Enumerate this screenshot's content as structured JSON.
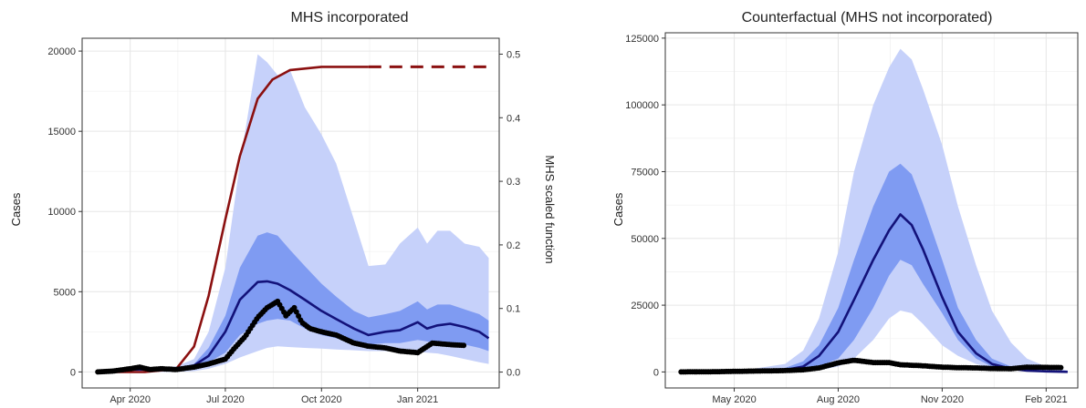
{
  "chart_data": [
    {
      "type": "area",
      "title": "MHS incorporated",
      "xlabel": "",
      "ylabel": "Cases",
      "y2label": "MHS scaled function",
      "xlim": [
        "2020-02-15",
        "2021-03-20"
      ],
      "ylim": [
        -1000,
        20800
      ],
      "y2lim": [
        -0.025,
        0.525
      ],
      "xticks": [
        {
          "date": "2020-04-01",
          "label": "Apr 2020"
        },
        {
          "date": "2020-07-01",
          "label": "Jul 2020"
        },
        {
          "date": "2020-10-01",
          "label": "Oct 2020"
        },
        {
          "date": "2021-01-01",
          "label": "Jan 2021"
        }
      ],
      "yticks": [
        0,
        5000,
        10000,
        15000,
        20000
      ],
      "y2ticks": [
        0.0,
        0.1,
        0.2,
        0.3,
        0.4,
        0.5
      ],
      "ytick_labels": [
        "0",
        "5000",
        "10000",
        "15000",
        "20000"
      ],
      "y2tick_labels": [
        "0.0",
        "0.1",
        "0.2",
        "0.3",
        "0.4",
        "0.5"
      ],
      "x": [
        "2020-03-01",
        "2020-03-15",
        "2020-04-01",
        "2020-04-15",
        "2020-05-01",
        "2020-05-15",
        "2020-06-01",
        "2020-06-15",
        "2020-07-01",
        "2020-07-15",
        "2020-08-01",
        "2020-08-10",
        "2020-08-20",
        "2020-09-01",
        "2020-09-15",
        "2020-10-01",
        "2020-10-15",
        "2020-11-01",
        "2020-11-15",
        "2020-12-01",
        "2020-12-15",
        "2021-01-01",
        "2021-01-10",
        "2021-01-20",
        "2021-02-01",
        "2021-02-15",
        "2021-03-01",
        "2021-03-10"
      ],
      "series": [
        {
          "kind": "band-outer",
          "lower": [
            0,
            0,
            0,
            0,
            0,
            0,
            50,
            200,
            500,
            900,
            1300,
            1500,
            1600,
            1550,
            1500,
            1450,
            1400,
            1350,
            1300,
            1300,
            1250,
            1250,
            1200,
            1150,
            1000,
            800,
            600,
            500
          ],
          "upper": [
            150,
            200,
            300,
            300,
            300,
            350,
            800,
            2500,
            6500,
            13000,
            19800,
            19300,
            18500,
            18800,
            16500,
            14800,
            13000,
            9500,
            6600,
            6700,
            8000,
            9000,
            8000,
            8800,
            8800,
            8000,
            7800,
            7100
          ]
        },
        {
          "kind": "band-inner",
          "lower": [
            0,
            0,
            50,
            100,
            100,
            150,
            300,
            600,
            1200,
            2300,
            3000,
            3200,
            3300,
            3200,
            2700,
            2300,
            2100,
            1800,
            1700,
            1800,
            1800,
            2000,
            1900,
            1800,
            1800,
            1700,
            1500,
            1300
          ],
          "upper": [
            50,
            100,
            200,
            200,
            200,
            250,
            500,
            1500,
            3500,
            6500,
            8500,
            8700,
            8500,
            7600,
            6600,
            5500,
            4700,
            3800,
            3400,
            3600,
            3800,
            4400,
            3900,
            4200,
            4200,
            3900,
            3600,
            3200
          ]
        },
        {
          "kind": "median",
          "values": [
            20,
            50,
            150,
            150,
            150,
            200,
            400,
            1000,
            2500,
            4500,
            5600,
            5650,
            5500,
            5100,
            4500,
            3800,
            3300,
            2700,
            2300,
            2500,
            2600,
            3100,
            2700,
            2900,
            3000,
            2800,
            2500,
            2100
          ]
        },
        {
          "kind": "observed",
          "x": [
            "2020-03-01",
            "2020-03-15",
            "2020-04-01",
            "2020-04-10",
            "2020-04-20",
            "2020-05-01",
            "2020-05-15",
            "2020-06-01",
            "2020-06-15",
            "2020-07-01",
            "2020-07-10",
            "2020-07-20",
            "2020-08-01",
            "2020-08-10",
            "2020-08-20",
            "2020-08-28",
            "2020-09-05",
            "2020-09-12",
            "2020-09-20",
            "2020-10-01",
            "2020-10-15",
            "2020-11-01",
            "2020-11-15",
            "2020-12-01",
            "2020-12-15",
            "2021-01-01",
            "2021-01-15",
            "2021-02-01",
            "2021-02-15"
          ],
          "values": [
            0,
            50,
            200,
            300,
            150,
            200,
            150,
            300,
            500,
            800,
            1500,
            2200,
            3400,
            4000,
            4400,
            3500,
            4000,
            3100,
            2700,
            2500,
            2300,
            1800,
            1600,
            1500,
            1300,
            1200,
            1800,
            1700,
            1650
          ]
        },
        {
          "kind": "mhs",
          "axis": "y2",
          "x": [
            "2020-03-01",
            "2020-04-15",
            "2020-05-15",
            "2020-06-01",
            "2020-06-15",
            "2020-07-01",
            "2020-07-15",
            "2020-08-01",
            "2020-08-15",
            "2020-09-01",
            "2020-10-01",
            "2020-11-15"
          ],
          "values": [
            0,
            0,
            0.005,
            0.04,
            0.12,
            0.24,
            0.34,
            0.43,
            0.46,
            0.475,
            0.48,
            0.48
          ],
          "projection_x": [
            "2020-11-15",
            "2021-03-10"
          ],
          "projection_values": [
            0.48,
            0.48
          ]
        }
      ]
    },
    {
      "type": "area",
      "title": "Counterfactual (MHS not incorporated)",
      "xlabel": "",
      "ylabel": "Cases",
      "xlim": [
        "2020-03-01",
        "2021-03-01"
      ],
      "ylim": [
        -6000,
        127000
      ],
      "xticks": [
        {
          "date": "2020-05-01",
          "label": "May 2020"
        },
        {
          "date": "2020-08-01",
          "label": "Aug 2020"
        },
        {
          "date": "2020-11-01",
          "label": "Nov 2020"
        },
        {
          "date": "2021-02-01",
          "label": "Feb 2021"
        }
      ],
      "yticks": [
        0,
        25000,
        50000,
        75000,
        100000,
        125000
      ],
      "ytick_labels": [
        "0",
        "25000",
        "50000",
        "75000",
        "100000",
        "125000"
      ],
      "x": [
        "2020-03-15",
        "2020-04-15",
        "2020-05-15",
        "2020-06-15",
        "2020-07-01",
        "2020-07-15",
        "2020-08-01",
        "2020-08-15",
        "2020-09-01",
        "2020-09-15",
        "2020-09-25",
        "2020-10-05",
        "2020-10-15",
        "2020-11-01",
        "2020-11-15",
        "2020-12-01",
        "2020-12-15",
        "2021-01-01",
        "2021-01-15",
        "2021-02-01",
        "2021-02-20"
      ],
      "series": [
        {
          "kind": "band-outer",
          "lower": [
            0,
            0,
            0,
            0,
            200,
            700,
            2000,
            5000,
            12000,
            20000,
            23000,
            22000,
            18000,
            10000,
            6000,
            3000,
            1500,
            700,
            300,
            100,
            0
          ],
          "upper": [
            300,
            500,
            1000,
            3000,
            8000,
            20000,
            45000,
            75000,
            100000,
            114000,
            121000,
            117000,
            106000,
            85000,
            62000,
            40000,
            23000,
            11000,
            5000,
            2000,
            500
          ]
        },
        {
          "kind": "band-inner",
          "lower": [
            0,
            0,
            0,
            200,
            700,
            2000,
            5000,
            12000,
            24000,
            36000,
            42000,
            40000,
            33000,
            22000,
            12000,
            5000,
            2000,
            800,
            300,
            100,
            0
          ],
          "upper": [
            100,
            200,
            500,
            1500,
            4000,
            10000,
            24000,
            42000,
            62000,
            75000,
            78000,
            74000,
            63000,
            42000,
            24000,
            12000,
            5000,
            2000,
            800,
            300,
            100
          ]
        },
        {
          "kind": "median",
          "values": [
            50,
            100,
            300,
            800,
            2000,
            6000,
            15000,
            27000,
            42000,
            53000,
            59000,
            55000,
            46000,
            28000,
            15000,
            7000,
            3000,
            1200,
            500,
            200,
            50
          ]
        },
        {
          "kind": "observed",
          "x": [
            "2020-03-15",
            "2020-04-15",
            "2020-05-15",
            "2020-06-15",
            "2020-07-01",
            "2020-07-15",
            "2020-08-01",
            "2020-08-15",
            "2020-09-01",
            "2020-09-15",
            "2020-09-25",
            "2020-10-05",
            "2020-10-15",
            "2020-11-01",
            "2020-11-15",
            "2020-12-01",
            "2020-12-15",
            "2021-01-01",
            "2021-01-15",
            "2021-02-01",
            "2021-02-15"
          ],
          "values": [
            0,
            100,
            300,
            500,
            800,
            1500,
            3400,
            4400,
            3500,
            3500,
            2700,
            2500,
            2300,
            1800,
            1600,
            1500,
            1300,
            1200,
            1800,
            1700,
            1650
          ]
        }
      ]
    }
  ],
  "colors": {
    "band_outer": "#c6d1fa",
    "band_inner": "#7f9bf2",
    "median": "#13127a",
    "observed": "#000000",
    "mhs": "#8b1010",
    "grid": "#e6e6e6",
    "frame": "#333333"
  }
}
